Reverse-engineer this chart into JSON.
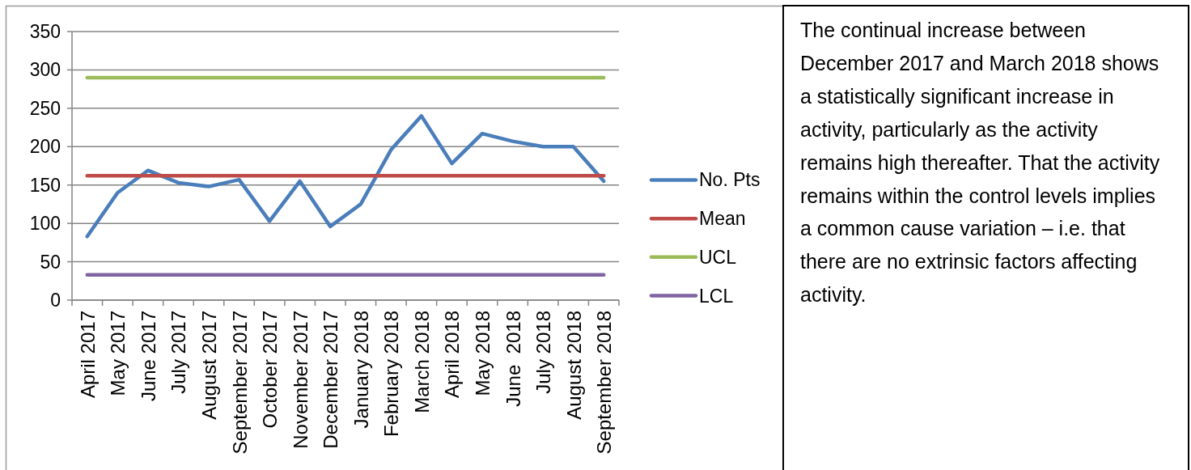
{
  "chart_data": [
    {
      "type": "line",
      "categories": [
        "April 2017",
        "May 2017",
        "June 2017",
        "July 2017",
        "August 2017",
        "September 2017",
        "October 2017",
        "November 2017",
        "December 2017",
        "January 2018",
        "February 2018",
        "March 2018",
        "April 2018",
        "May 2018",
        "June  2018",
        "July 2018",
        "August 2018",
        "September 2018"
      ],
      "series": [
        {
          "name": "No. Pts",
          "color": "#4a7ebb",
          "values": [
            83,
            140,
            169,
            153,
            148,
            157,
            103,
            155,
            96,
            125,
            196,
            240,
            178,
            217,
            207,
            200,
            200,
            155
          ]
        },
        {
          "name": "Mean",
          "color": "#be4b48",
          "values": [
            162,
            162,
            162,
            162,
            162,
            162,
            162,
            162,
            162,
            162,
            162,
            162,
            162,
            162,
            162,
            162,
            162,
            162
          ]
        },
        {
          "name": "UCL",
          "color": "#9bbb59",
          "values": [
            290,
            290,
            290,
            290,
            290,
            290,
            290,
            290,
            290,
            290,
            290,
            290,
            290,
            290,
            290,
            290,
            290,
            290
          ]
        },
        {
          "name": "LCL",
          "color": "#8064a2",
          "values": [
            33,
            33,
            33,
            33,
            33,
            33,
            33,
            33,
            33,
            33,
            33,
            33,
            33,
            33,
            33,
            33,
            33,
            33
          ]
        }
      ],
      "ylim": [
        0,
        350
      ],
      "yticks": [
        0,
        50,
        100,
        150,
        200,
        250,
        300,
        350
      ],
      "grid": "y",
      "legend": "right",
      "marker": "none",
      "line_style": "solid"
    },
    {
      "type": "other",
      "annotations": [
        "The continual increase between December 2017 and March 2018 shows a statistically significant increase in activity, particularly as the activity remains high thereafter. That the activity remains within the control levels implies a common cause variation – i.e. that there are no extrinsic factors affecting activity."
      ]
    }
  ]
}
